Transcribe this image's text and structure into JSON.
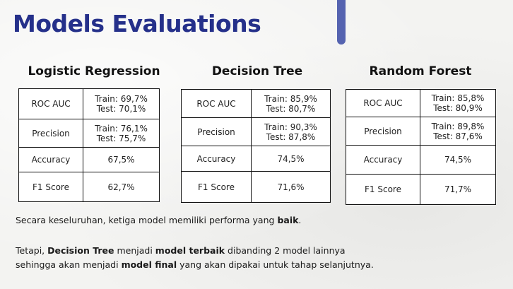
{
  "title": "Models Evaluations",
  "models": [
    {
      "name": "Logistic Regression",
      "rows": [
        {
          "metric": "ROC AUC",
          "line1": "Train: 69,7%",
          "line2": "Test: 70,1%"
        },
        {
          "metric": "Precision",
          "line1": "Train: 76,1%",
          "line2": "Test: 75,7%"
        },
        {
          "metric": "Accuracy",
          "line1": "67,5%"
        },
        {
          "metric": "F1 Score",
          "line1": "62,7%"
        }
      ]
    },
    {
      "name": "Decision Tree",
      "rows": [
        {
          "metric": "ROC AUC",
          "line1": "Train: 85,9%",
          "line2": "Test: 80,7%"
        },
        {
          "metric": "Precision",
          "line1": "Train: 90,3%",
          "line2": "Test: 87,8%"
        },
        {
          "metric": "Accuracy",
          "line1": "74,5%"
        },
        {
          "metric": "F1 Score",
          "line1": "71,6%"
        }
      ]
    },
    {
      "name": "Random Forest",
      "rows": [
        {
          "metric": "ROC AUC",
          "line1": "Train: 85,8%",
          "line2": "Test: 80,9%"
        },
        {
          "metric": "Precision",
          "line1": "Train: 89,8%",
          "line2": "Test: 87,6%"
        },
        {
          "metric": "Accuracy",
          "line1": "74,5%"
        },
        {
          "metric": "F1 Score",
          "line1": "71,7%"
        }
      ]
    }
  ],
  "summary": {
    "p1_a": "Secara keseluruhan, ketiga model memiliki performa yang ",
    "p1_b": "baik",
    "p1_c": ".",
    "p2_a": "Tetapi, ",
    "p2_b": "Decision Tree",
    "p2_c": " menjadi ",
    "p2_d": "model terbaik",
    "p2_e": " dibanding 2 model lainnya",
    "p3_a": "sehingga akan menjadi ",
    "p3_b": "model final",
    "p3_c": " yang akan dipakai untuk tahap selanjutnya."
  },
  "colors": {
    "accent": "#5563b0",
    "title": "#25308a"
  }
}
